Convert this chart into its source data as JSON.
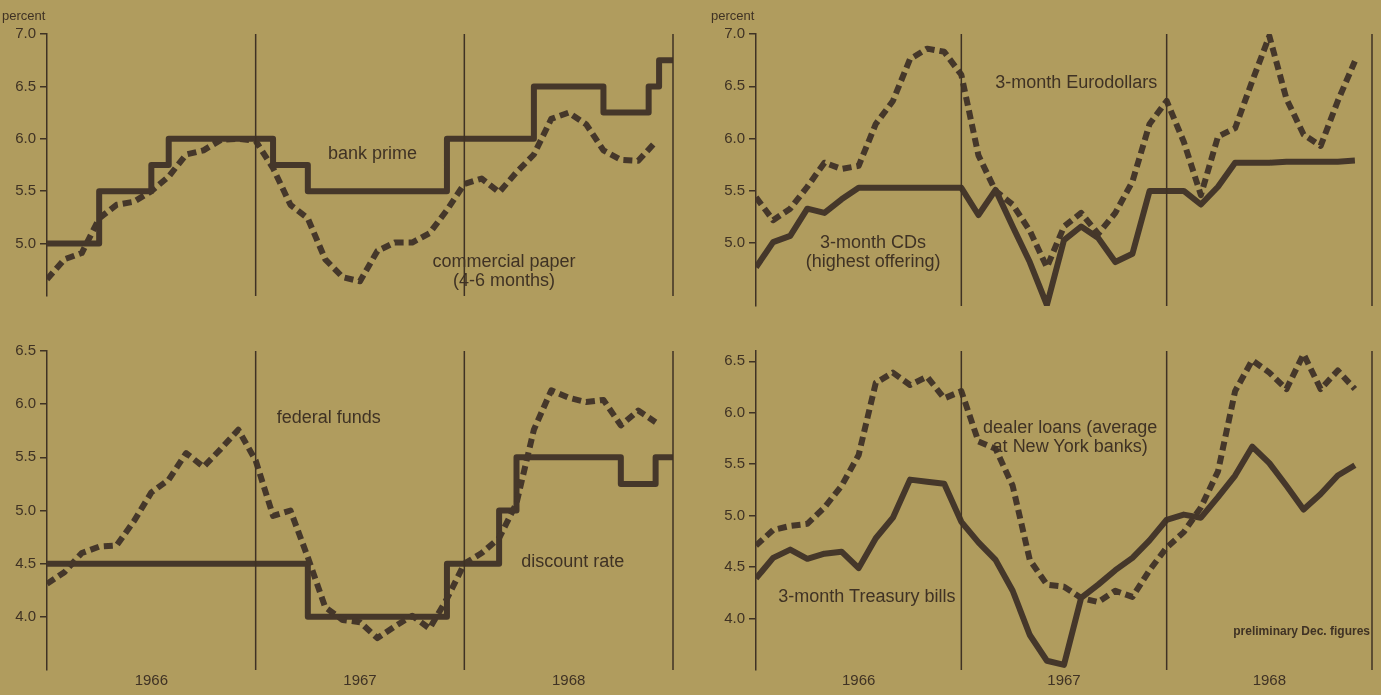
{
  "chart_data": [
    {
      "type": "line",
      "ylabel": "percent",
      "xlim": [
        "1966-01",
        "1969-01"
      ],
      "ylim": [
        4.5,
        7.0
      ],
      "yticks": [
        {
          "value": 5.0,
          "label": "5.0"
        },
        {
          "value": 5.5,
          "label": "5.5"
        },
        {
          "value": 6.0,
          "label": "6.0"
        },
        {
          "value": 6.5,
          "label": "6.5"
        },
        {
          "value": 7.0,
          "label": "7.0"
        }
      ],
      "tick_labels": "y",
      "grid": false,
      "ref_lines": [
        {
          "axis": "x",
          "value": "1967-01"
        },
        {
          "axis": "x",
          "value": "1968-01"
        },
        {
          "axis": "x",
          "value": "1969-01"
        }
      ],
      "x": [
        "1966-01",
        "1966-02",
        "1966-03",
        "1966-04",
        "1966-05",
        "1966-06",
        "1966-07",
        "1966-08",
        "1966-09",
        "1966-10",
        "1966-11",
        "1966-12",
        "1967-01",
        "1967-02",
        "1967-03",
        "1967-04",
        "1967-05",
        "1967-06",
        "1967-07",
        "1967-08",
        "1967-09",
        "1967-10",
        "1967-11",
        "1967-12",
        "1968-01",
        "1968-02",
        "1968-03",
        "1968-04",
        "1968-05",
        "1968-06",
        "1968-07",
        "1968-08",
        "1968-09",
        "1968-10",
        "1968-11",
        "1968-12"
      ],
      "series": [
        {
          "name": "bank prime",
          "type": "step",
          "color": "#45372a",
          "line_style": "solid",
          "x": [
            "1966-01",
            "1966-04",
            "1966-07",
            "1966-08",
            "1967-02",
            "1967-04",
            "1967-12",
            "1968-05",
            "1968-09",
            "1968-11-19",
            "1968-12-07",
            "1969-01"
          ],
          "values": [
            5.0,
            5.5,
            5.75,
            6.0,
            5.75,
            5.5,
            6.0,
            6.5,
            6.25,
            6.5,
            6.75,
            6.75
          ]
        },
        {
          "name": "commercial paper (4-6 months)",
          "type": "line",
          "color": "#45372a",
          "line_style": "dashed",
          "values": [
            4.66,
            4.85,
            4.91,
            5.24,
            5.37,
            5.4,
            5.5,
            5.64,
            5.85,
            5.89,
            5.99,
            6.0,
            5.98,
            5.72,
            5.37,
            5.24,
            4.85,
            4.68,
            4.64,
            4.93,
            5.01,
            5.01,
            5.1,
            5.32,
            5.57,
            5.62,
            5.49,
            5.68,
            5.85,
            6.19,
            6.25,
            6.14,
            5.89,
            5.8,
            5.79,
            5.97
          ]
        }
      ]
    },
    {
      "type": "line",
      "ylabel": "percent",
      "xlim": [
        "1966-01",
        "1969-01"
      ],
      "ylim": [
        4.4,
        7.0
      ],
      "yticks": [
        {
          "value": 5.0,
          "label": "5.0"
        },
        {
          "value": 5.5,
          "label": "5.5"
        },
        {
          "value": 6.0,
          "label": "6.0"
        },
        {
          "value": 6.5,
          "label": "6.5"
        },
        {
          "value": 7.0,
          "label": "7.0"
        }
      ],
      "tick_labels": "y",
      "grid": false,
      "ref_lines": [
        {
          "axis": "x",
          "value": "1967-01"
        },
        {
          "axis": "x",
          "value": "1968-01"
        },
        {
          "axis": "x",
          "value": "1969-01"
        }
      ],
      "x": [
        "1966-01",
        "1966-02",
        "1966-03",
        "1966-04",
        "1966-05",
        "1966-06",
        "1966-07",
        "1966-08",
        "1966-09",
        "1966-10",
        "1966-11",
        "1966-12",
        "1967-01",
        "1967-02",
        "1967-03",
        "1967-04",
        "1967-05",
        "1967-06",
        "1967-07",
        "1967-08",
        "1967-09",
        "1967-10",
        "1967-11",
        "1967-12",
        "1968-01",
        "1968-02",
        "1968-03",
        "1968-04",
        "1968-05",
        "1968-06",
        "1968-07",
        "1968-08",
        "1968-09",
        "1968-10",
        "1968-11",
        "1968-12"
      ],
      "series": [
        {
          "name": "3-month Eurodollars",
          "type": "line",
          "color": "#45372a",
          "line_style": "dashed",
          "values": [
            5.44,
            5.22,
            5.33,
            5.54,
            5.77,
            5.71,
            5.74,
            6.14,
            6.36,
            6.76,
            6.86,
            6.83,
            6.61,
            5.84,
            5.5,
            5.37,
            5.12,
            4.77,
            5.16,
            5.29,
            5.09,
            5.29,
            5.59,
            6.14,
            6.36,
            5.97,
            5.46,
            6.02,
            6.1,
            6.55,
            6.98,
            6.38,
            6.04,
            5.93,
            6.36,
            6.74
          ]
        },
        {
          "name": "3-month CDs (highest offering)",
          "type": "line",
          "color": "#45372a",
          "line_style": "solid",
          "values": [
            4.77,
            5.01,
            5.07,
            5.33,
            5.29,
            5.42,
            5.53,
            5.53,
            5.53,
            5.53,
            5.53,
            5.53,
            5.53,
            5.27,
            5.51,
            5.16,
            4.82,
            4.41,
            5.03,
            5.16,
            5.05,
            4.82,
            4.9,
            5.5,
            5.5,
            5.5,
            5.37,
            5.54,
            5.77,
            5.77,
            5.77,
            5.78,
            5.78,
            5.78,
            5.78,
            5.79
          ]
        }
      ]
    },
    {
      "type": "line",
      "xlim": [
        "1966-01",
        "1969-01"
      ],
      "xticks": [
        {
          "value": "1966-07",
          "label": "1966"
        },
        {
          "value": "1967-07",
          "label": "1967"
        },
        {
          "value": "1968-07",
          "label": "1968"
        }
      ],
      "ylim": [
        3.5,
        6.5
      ],
      "yticks": [
        {
          "value": 4.0,
          "label": "4.0"
        },
        {
          "value": 4.5,
          "label": "4.5"
        },
        {
          "value": 5.0,
          "label": "5.0"
        },
        {
          "value": 5.5,
          "label": "5.5"
        },
        {
          "value": 6.0,
          "label": "6.0"
        },
        {
          "value": 6.5,
          "label": "6.5"
        }
      ],
      "grid": false,
      "ref_lines": [
        {
          "axis": "x",
          "value": "1967-01"
        },
        {
          "axis": "x",
          "value": "1968-01"
        },
        {
          "axis": "x",
          "value": "1969-01"
        }
      ],
      "x": [
        "1966-01",
        "1966-02",
        "1966-03",
        "1966-04",
        "1966-05",
        "1966-06",
        "1966-07",
        "1966-08",
        "1966-09",
        "1966-10",
        "1966-11",
        "1966-12",
        "1967-01",
        "1967-02",
        "1967-03",
        "1967-04",
        "1967-05",
        "1967-06",
        "1967-07",
        "1967-08",
        "1967-09",
        "1967-10",
        "1967-11",
        "1967-12",
        "1968-01",
        "1968-02",
        "1968-03",
        "1968-04",
        "1968-05",
        "1968-06",
        "1968-07",
        "1968-08",
        "1968-09",
        "1968-10",
        "1968-11",
        "1968-12"
      ],
      "series": [
        {
          "name": "federal funds",
          "type": "line",
          "color": "#45372a",
          "line_style": "dashed",
          "values": [
            4.31,
            4.42,
            4.6,
            4.66,
            4.67,
            4.9,
            5.17,
            5.29,
            5.54,
            5.41,
            5.58,
            5.76,
            5.47,
            4.95,
            5.0,
            4.56,
            4.09,
            3.97,
            3.95,
            3.8,
            3.91,
            4.01,
            3.89,
            4.17,
            4.5,
            4.6,
            4.74,
            5.07,
            5.76,
            6.13,
            6.06,
            6.02,
            6.04,
            5.8,
            5.94,
            5.83
          ]
        },
        {
          "name": "discount rate",
          "type": "step",
          "color": "#45372a",
          "line_style": "solid",
          "x": [
            "1966-01",
            "1967-04",
            "1967-12",
            "1968-03",
            "1968-04",
            "1968-10",
            "1968-12",
            "1969-01"
          ],
          "values": [
            4.5,
            4.0,
            4.5,
            5.0,
            5.5,
            5.25,
            5.5,
            5.5
          ]
        }
      ]
    },
    {
      "type": "line",
      "xlim": [
        "1966-01",
        "1969-01"
      ],
      "xticks": [
        {
          "value": "1966-07",
          "label": "1966"
        },
        {
          "value": "1967-07",
          "label": "1967"
        },
        {
          "value": "1968-07",
          "label": "1968"
        }
      ],
      "ylim": [
        3.5,
        6.6
      ],
      "yticks": [
        {
          "value": 4.0,
          "label": "4.0"
        },
        {
          "value": 4.5,
          "label": "4.5"
        },
        {
          "value": 5.0,
          "label": "5.0"
        },
        {
          "value": 5.5,
          "label": "5.5"
        },
        {
          "value": 6.0,
          "label": "6.0"
        },
        {
          "value": 6.5,
          "label": "6.5"
        }
      ],
      "grid": false,
      "ref_lines": [
        {
          "axis": "x",
          "value": "1967-01"
        },
        {
          "axis": "x",
          "value": "1968-01"
        },
        {
          "axis": "x",
          "value": "1969-01"
        }
      ],
      "annotations": [
        "preliminary Dec. figures"
      ],
      "x": [
        "1966-01",
        "1966-02",
        "1966-03",
        "1966-04",
        "1966-05",
        "1966-06",
        "1966-07",
        "1966-08",
        "1966-09",
        "1966-10",
        "1966-11",
        "1966-12",
        "1967-01",
        "1967-02",
        "1967-03",
        "1967-04",
        "1967-05",
        "1967-06",
        "1967-07",
        "1967-08",
        "1967-09",
        "1967-10",
        "1967-11",
        "1967-12",
        "1968-01",
        "1968-02",
        "1968-03",
        "1968-04",
        "1968-05",
        "1968-06",
        "1968-07",
        "1968-08",
        "1968-09",
        "1968-10",
        "1968-11",
        "1968-12"
      ],
      "series": [
        {
          "name": "dealer loans (average at New York banks)",
          "type": "line",
          "color": "#45372a",
          "line_style": "dashed",
          "values": [
            4.71,
            4.86,
            4.9,
            4.92,
            5.08,
            5.29,
            5.59,
            6.29,
            6.39,
            6.27,
            6.35,
            6.14,
            6.21,
            5.72,
            5.65,
            5.29,
            4.57,
            4.33,
            4.31,
            4.2,
            4.16,
            4.27,
            4.21,
            4.47,
            4.69,
            4.84,
            5.08,
            5.43,
            6.21,
            6.51,
            6.39,
            6.23,
            6.57,
            6.23,
            6.41,
            6.23
          ]
        },
        {
          "name": "3-month Treasury bills",
          "type": "line",
          "color": "#45372a",
          "line_style": "solid",
          "values": [
            4.39,
            4.59,
            4.67,
            4.58,
            4.63,
            4.65,
            4.49,
            4.78,
            4.98,
            5.35,
            5.33,
            5.31,
            4.94,
            4.74,
            4.57,
            4.27,
            3.84,
            3.59,
            3.55,
            4.2,
            4.33,
            4.47,
            4.59,
            4.76,
            4.96,
            5.01,
            4.98,
            5.18,
            5.39,
            5.67,
            5.51,
            5.29,
            5.06,
            5.21,
            5.39,
            5.49
          ]
        }
      ]
    }
  ]
}
